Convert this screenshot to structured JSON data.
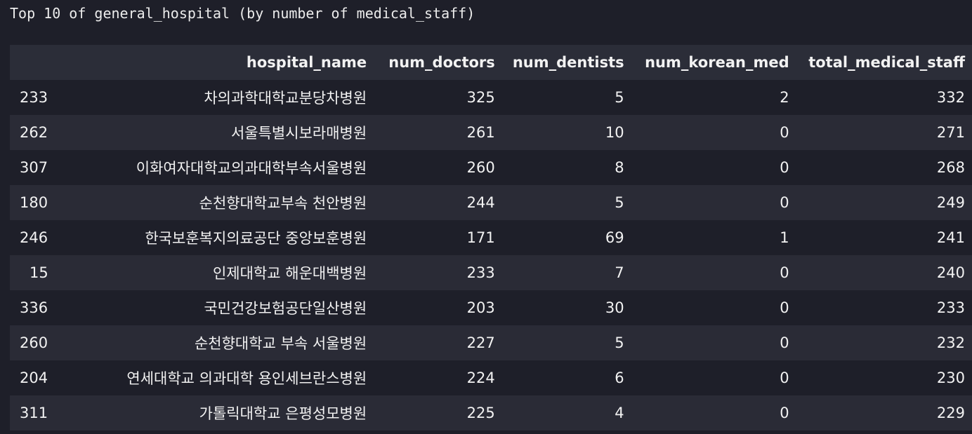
{
  "caption": "Top 10 of general_hospital (by number of medical_staff)",
  "table": {
    "columns": [
      "",
      "hospital_name",
      "num_doctors",
      "num_dentists",
      "num_korean_med",
      "total_medical_staff"
    ],
    "rows": [
      {
        "index": "233",
        "hospital_name": "차의과학대학교분당차병원",
        "num_doctors": "325",
        "num_dentists": "5",
        "num_korean_med": "2",
        "total_medical_staff": "332"
      },
      {
        "index": "262",
        "hospital_name": "서울특별시보라매병원",
        "num_doctors": "261",
        "num_dentists": "10",
        "num_korean_med": "0",
        "total_medical_staff": "271"
      },
      {
        "index": "307",
        "hospital_name": "이화여자대학교의과대학부속서울병원",
        "num_doctors": "260",
        "num_dentists": "8",
        "num_korean_med": "0",
        "total_medical_staff": "268"
      },
      {
        "index": "180",
        "hospital_name": "순천향대학교부속 천안병원",
        "num_doctors": "244",
        "num_dentists": "5",
        "num_korean_med": "0",
        "total_medical_staff": "249"
      },
      {
        "index": "246",
        "hospital_name": "한국보훈복지의료공단 중앙보훈병원",
        "num_doctors": "171",
        "num_dentists": "69",
        "num_korean_med": "1",
        "total_medical_staff": "241"
      },
      {
        "index": "15",
        "hospital_name": "인제대학교 해운대백병원",
        "num_doctors": "233",
        "num_dentists": "7",
        "num_korean_med": "0",
        "total_medical_staff": "240"
      },
      {
        "index": "336",
        "hospital_name": "국민건강보험공단일산병원",
        "num_doctors": "203",
        "num_dentists": "30",
        "num_korean_med": "0",
        "total_medical_staff": "233"
      },
      {
        "index": "260",
        "hospital_name": "순천향대학교 부속 서울병원",
        "num_doctors": "227",
        "num_dentists": "5",
        "num_korean_med": "0",
        "total_medical_staff": "232"
      },
      {
        "index": "204",
        "hospital_name": "연세대학교 의과대학 용인세브란스병원",
        "num_doctors": "224",
        "num_dentists": "6",
        "num_korean_med": "0",
        "total_medical_staff": "230"
      },
      {
        "index": "311",
        "hospital_name": "가톨릭대학교 은평성모병원",
        "num_doctors": "225",
        "num_dentists": "4",
        "num_korean_med": "0",
        "total_medical_staff": "229"
      }
    ]
  }
}
